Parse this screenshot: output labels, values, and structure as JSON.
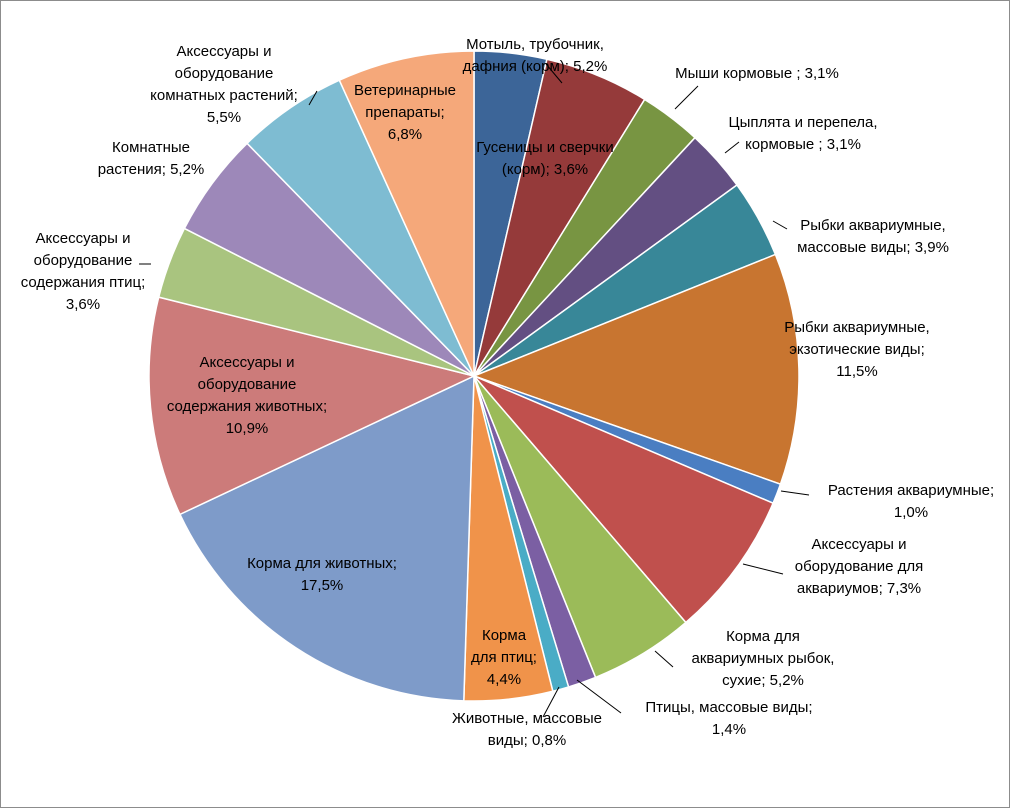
{
  "chart_data": {
    "type": "pie",
    "title": "",
    "start_angle_deg": 0,
    "direction": "clockwise",
    "slices": [
      {
        "label": "Гусеницы и сверчки (корм)",
        "value_text": "3,6%",
        "value": 3.6,
        "color": "#3c6598"
      },
      {
        "label": "Мотыль, трубочник, дафния (корм)",
        "value_text": "5,2%",
        "value": 5.2,
        "color": "#953a3a"
      },
      {
        "label": "Мыши кормовые",
        "value_text": "3,1%",
        "value": 3.1,
        "color": "#789542"
      },
      {
        "label": "Цыплята и перепела, кормовые",
        "value_text": "3,1%",
        "value": 3.1,
        "color": "#634f82"
      },
      {
        "label": "Рыбки аквариумные, массовые виды",
        "value_text": "3,9%",
        "value": 3.9,
        "color": "#388798"
      },
      {
        "label": "Рыбки аквариумные, экзотические виды",
        "value_text": "11,5%",
        "value": 11.5,
        "color": "#c87530"
      },
      {
        "label": "Растения аквариумные",
        "value_text": "1,0%",
        "value": 1.0,
        "color": "#4a7ec2"
      },
      {
        "label": "Аксессуары и оборудование для аквариумов",
        "value_text": "7,3%",
        "value": 7.3,
        "color": "#c0504d"
      },
      {
        "label": "Корма для аквариумных рыбок, сухие",
        "value_text": "5,2%",
        "value": 5.2,
        "color": "#9bbb59"
      },
      {
        "label": "Птицы, массовые виды",
        "value_text": "1,4%",
        "value": 1.4,
        "color": "#7b5fa3"
      },
      {
        "label": "Животные, массовые виды",
        "value_text": "0,8%",
        "value": 0.8,
        "color": "#4aacc6"
      },
      {
        "label": "Корма для птиц",
        "value_text": "4,4%",
        "value": 4.4,
        "color": "#f0934a"
      },
      {
        "label": "Корма для животных",
        "value_text": "17,5%",
        "value": 17.5,
        "color": "#7e9bc9"
      },
      {
        "label": "Аксессуары и оборудование содержания животных",
        "value_text": "10,9%",
        "value": 10.9,
        "color": "#cc7b7a"
      },
      {
        "label": "Аксессуары и оборудование содержания птиц",
        "value_text": "3,6%",
        "value": 3.6,
        "color": "#a9c47f"
      },
      {
        "label": "Комнатные растения",
        "value_text": "5,2%",
        "value": 5.2,
        "color": "#9d88b9"
      },
      {
        "label": "Аксессуары и оборудование комнатных растений",
        "value_text": "5,5%",
        "value": 5.5,
        "color": "#7ebcd2"
      },
      {
        "label": "Ветеринарные препараты",
        "value_text": "6,8%",
        "value": 6.8,
        "color": "#f5a87a"
      }
    ],
    "data_labels": [
      {
        "slice": 0,
        "lines": [
          "Гусеницы и сверчки",
          "(корм); 3,6%"
        ]
      },
      {
        "slice": 1,
        "lines": [
          "Мотыль, трубочник,",
          "дафния (корм); 5,2%"
        ]
      },
      {
        "slice": 2,
        "lines": [
          "Мыши кормовые ; 3,1%"
        ]
      },
      {
        "slice": 3,
        "lines": [
          "Цыплята и перепела,",
          "кормовые ; 3,1%"
        ]
      },
      {
        "slice": 4,
        "lines": [
          "Рыбки аквариумные,",
          "массовые виды; 3,9%"
        ]
      },
      {
        "slice": 5,
        "lines": [
          "Рыбки аквариумные,",
          "экзотические виды;",
          "11,5%"
        ]
      },
      {
        "slice": 6,
        "lines": [
          "Растения аквариумные;",
          "1,0%"
        ]
      },
      {
        "slice": 7,
        "lines": [
          "Аксессуары и",
          "оборудование для",
          "аквариумов; 7,3%"
        ]
      },
      {
        "slice": 8,
        "lines": [
          "Корма для",
          "аквариумных рыбок,",
          "сухие; 5,2%"
        ]
      },
      {
        "slice": 9,
        "lines": [
          "Птицы, массовые виды;",
          "1,4%"
        ]
      },
      {
        "slice": 10,
        "lines": [
          "Животные, массовые",
          "виды; 0,8%"
        ]
      },
      {
        "slice": 11,
        "lines": [
          "Корма",
          "для птиц;",
          "4,4%"
        ]
      },
      {
        "slice": 12,
        "lines": [
          "Корма для животных;",
          "17,5%"
        ]
      },
      {
        "slice": 13,
        "lines": [
          "Аксессуары и",
          "оборудование",
          "содержания животных;",
          "10,9%"
        ]
      },
      {
        "slice": 14,
        "lines": [
          "Аксессуары и",
          "оборудование",
          "содержания птиц;",
          "3,6%"
        ]
      },
      {
        "slice": 15,
        "lines": [
          "Комнатные",
          "растения; 5,2%"
        ]
      },
      {
        "slice": 16,
        "lines": [
          "Аксессуары и",
          "оборудование",
          "комнатных растений;",
          "5,5%"
        ]
      },
      {
        "slice": 17,
        "lines": [
          "Ветеринарные",
          "препараты;",
          "6,8%"
        ]
      }
    ],
    "legend": "none"
  }
}
